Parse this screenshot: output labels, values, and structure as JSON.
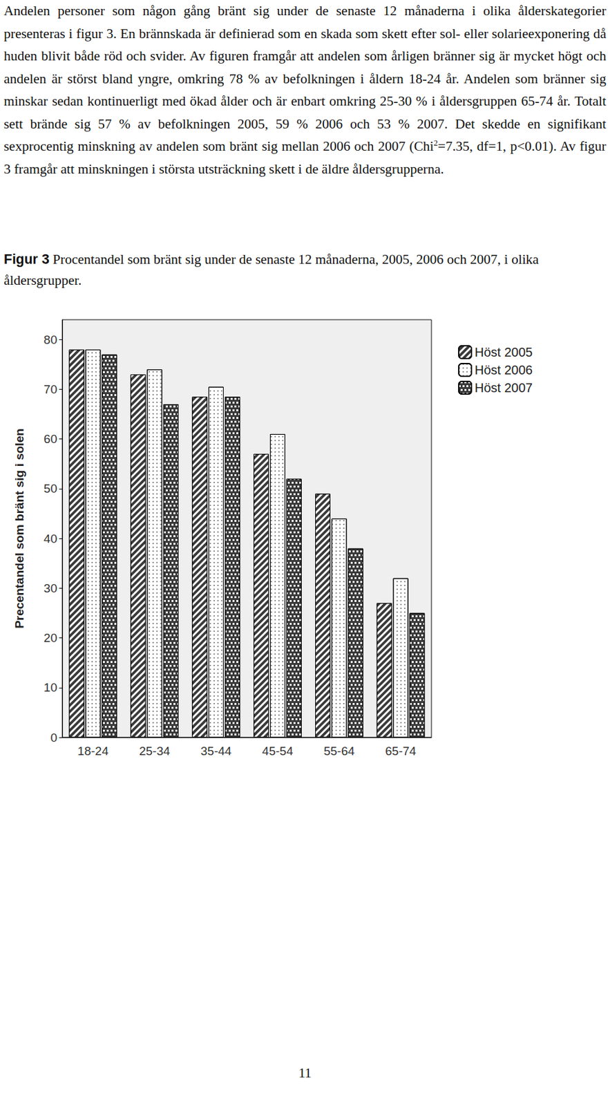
{
  "paragraph": {
    "before_sup": "Andelen personer som någon gång bränt sig under de senaste 12 månaderna i olika ålderskategorier presenteras i figur 3. En brännskada är definierad som en skada som skett efter sol- eller solarieexponering då huden blivit både röd och svider. Av figuren framgår att andelen som årligen bränner sig är mycket högt och andelen är störst bland yngre, omkring 78 % av befolkningen i åldern 18-24 år. Andelen som bränner sig minskar sedan kontinuerligt med ökad ålder och är enbart omkring 25-30 % i åldersgruppen 65-74 år. Totalt sett brände sig 57 % av befolkningen 2005, 59 % 2006 och 53 % 2007. Det skedde en signifikant sexprocentig minskning av andelen som bränt sig mellan 2006 och 2007 (Chi",
    "sup": "2",
    "after_sup": "=7.35, df=1, p<0.01). Av figur 3 framgår att minskningen i största utsträckning skett i de äldre åldersgrupperna."
  },
  "caption": {
    "label": "Figur 3",
    "text": "Procentandel som bränt sig under de senaste 12 månaderna, 2005, 2006 och 2007, i olika åldersgrupper."
  },
  "chart_data": {
    "type": "bar",
    "categories": [
      "18-24",
      "25-34",
      "35-44",
      "45-54",
      "55-64",
      "65-74"
    ],
    "series": [
      {
        "name": "Höst 2005",
        "color": "#3a3a3a",
        "values": [
          78,
          73,
          68.5,
          57,
          49,
          27
        ]
      },
      {
        "name": "Höst 2006",
        "color": "#ffffff",
        "values": [
          78,
          74,
          70.5,
          61,
          44,
          32
        ]
      },
      {
        "name": "Höst 2007",
        "color": "#3a3a3a",
        "values": [
          77,
          67,
          68.5,
          52,
          38,
          25
        ]
      }
    ],
    "ylabel": "Precentandel som bränt sig i solen",
    "ylim": [
      0,
      84
    ],
    "yticks": [
      0,
      10,
      20,
      30,
      40,
      50,
      60,
      70,
      80
    ],
    "grid": false,
    "legend": "upper right"
  },
  "page_number": "11"
}
